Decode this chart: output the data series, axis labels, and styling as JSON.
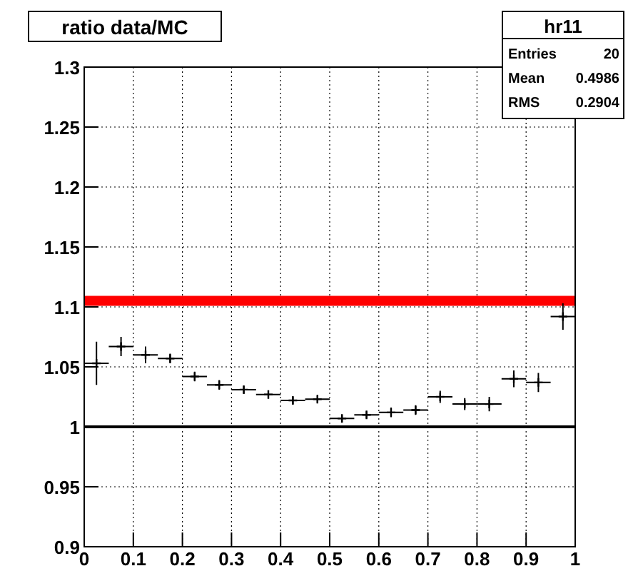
{
  "chart_data": {
    "type": "scatter",
    "title": "ratio data/MC",
    "annotations": [
      "hr11",
      "Entries 20",
      "Mean 0.4986",
      "RMS 0.2904"
    ],
    "x": [
      0.025,
      0.075,
      0.125,
      0.175,
      0.225,
      0.275,
      0.325,
      0.375,
      0.425,
      0.475,
      0.525,
      0.575,
      0.625,
      0.675,
      0.725,
      0.775,
      0.825,
      0.875,
      0.925,
      0.975
    ],
    "series": [
      {
        "color": "#000000",
        "values": [
          1.053,
          1.067,
          1.06,
          1.057,
          1.042,
          1.035,
          1.031,
          1.027,
          1.022,
          1.023,
          1.007,
          1.01,
          1.012,
          1.014,
          1.025,
          1.019,
          1.019,
          1.04,
          1.037,
          1.092
        ],
        "errors": [
          0.018,
          0.008,
          0.007,
          0.004,
          0.004,
          0.004,
          0.003,
          0.003,
          0.003,
          0.003,
          0.003,
          0.003,
          0.004,
          0.004,
          0.005,
          0.005,
          0.006,
          0.007,
          0.008,
          0.011
        ],
        "xerrors": [
          0.025,
          0.025,
          0.025,
          0.025,
          0.025,
          0.025,
          0.025,
          0.025,
          0.025,
          0.025,
          0.025,
          0.025,
          0.025,
          0.025,
          0.025,
          0.025,
          0.025,
          0.025,
          0.025,
          0.025
        ]
      }
    ],
    "marker": "cross",
    "xlim": [
      0,
      1
    ],
    "ylim": [
      0.9,
      1.3
    ],
    "xticks": [
      0,
      {
        "value": 0.1,
        "label": "0.1"
      },
      {
        "value": 0.2,
        "label": "0.2"
      },
      {
        "value": 0.3,
        "label": "0.3"
      },
      {
        "value": 0.4,
        "label": "0.4"
      },
      {
        "value": 0.5,
        "label": "0.5"
      },
      {
        "value": 0.6,
        "label": "0.6"
      },
      {
        "value": 0.7,
        "label": "0.7"
      },
      {
        "value": 0.8,
        "label": "0.8"
      },
      {
        "value": 0.9,
        "label": "0.9"
      },
      1
    ],
    "yticks": [
      0.9,
      0.95,
      1,
      1.05,
      1.1,
      1.15,
      1.2,
      1.25,
      1.3
    ],
    "grid": true,
    "ref_lines": [
      {
        "axis": "y",
        "value": 1.105,
        "color": "#ff0000"
      },
      {
        "axis": "y",
        "value": 1,
        "color": "#000000"
      }
    ]
  }
}
